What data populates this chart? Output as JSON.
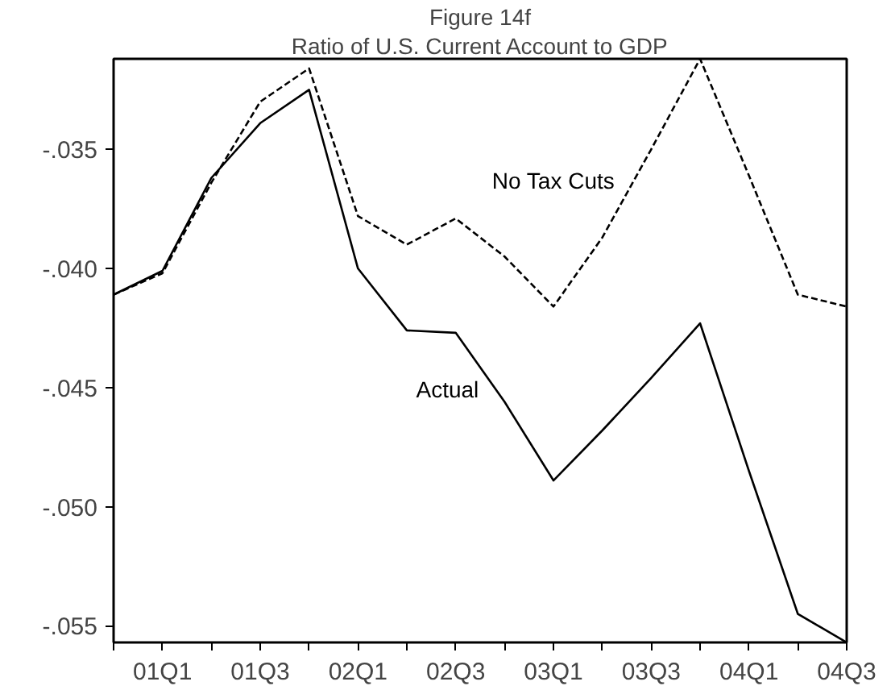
{
  "chart_data": {
    "type": "line",
    "title": "Figure 14f",
    "subtitle": "Ratio of U.S. Current Account to GDP",
    "categories": [
      null,
      "01Q1",
      null,
      "01Q3",
      null,
      "02Q1",
      null,
      "02Q3",
      null,
      "03Q1",
      null,
      "03Q3",
      null,
      "04Q1",
      null,
      "04Q3"
    ],
    "ylim": [
      -0.0557,
      -0.0312
    ],
    "yticks": [
      {
        "value": -0.035,
        "label": "-.035"
      },
      {
        "value": -0.04,
        "label": "-.040"
      },
      {
        "value": -0.045,
        "label": "-.045"
      },
      {
        "value": -0.05,
        "label": "-.050"
      },
      {
        "value": -0.055,
        "label": "-.055"
      }
    ],
    "grid": false,
    "legend": false,
    "marker": "none",
    "series": [
      {
        "name": "Actual",
        "color": "#000000",
        "line_style": "solid",
        "values": [
          -0.0411,
          -0.0401,
          -0.0362,
          -0.0339,
          -0.0325,
          -0.04,
          -0.0426,
          -0.0427,
          -0.0456,
          -0.0489,
          -0.0468,
          -0.0446,
          -0.0423,
          -0.0485,
          -0.0545,
          -0.0557
        ]
      },
      {
        "name": "No Tax Cuts",
        "color": "#000000",
        "line_style": "dashed",
        "values": [
          -0.0411,
          -0.0402,
          -0.0364,
          -0.033,
          -0.0316,
          -0.0378,
          -0.039,
          -0.0379,
          -0.0395,
          -0.0416,
          -0.0387,
          -0.035,
          -0.0312,
          -0.0361,
          -0.0411,
          -0.0416
        ]
      }
    ]
  }
}
